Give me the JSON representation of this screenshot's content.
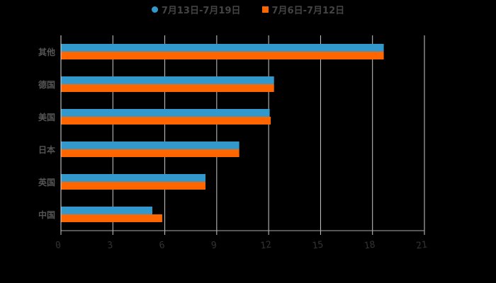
{
  "chart_data": {
    "type": "bar",
    "orientation": "horizontal",
    "title": "",
    "xlabel": "",
    "ylabel": "",
    "categories": [
      "其他",
      "德国",
      "美国",
      "日本",
      "英国",
      "中国"
    ],
    "series": [
      {
        "name": "7月13日-7月19日",
        "color": "#3399cc",
        "values": [
          18.65,
          12.31,
          12.06,
          10.3,
          8.35,
          5.28
        ]
      },
      {
        "name": "7月6日-7月12日",
        "color": "#ff6600",
        "values": [
          18.65,
          12.31,
          12.12,
          10.3,
          8.35,
          5.85
        ]
      }
    ],
    "xlim": [
      0,
      21
    ],
    "xticks": [
      0,
      3,
      6,
      9,
      12,
      15,
      18,
      21
    ],
    "grid": true,
    "legend_position": "top"
  },
  "legend": {
    "series1_label": "7月13日-7月19日",
    "series2_label": "7月6日-7月12日"
  }
}
